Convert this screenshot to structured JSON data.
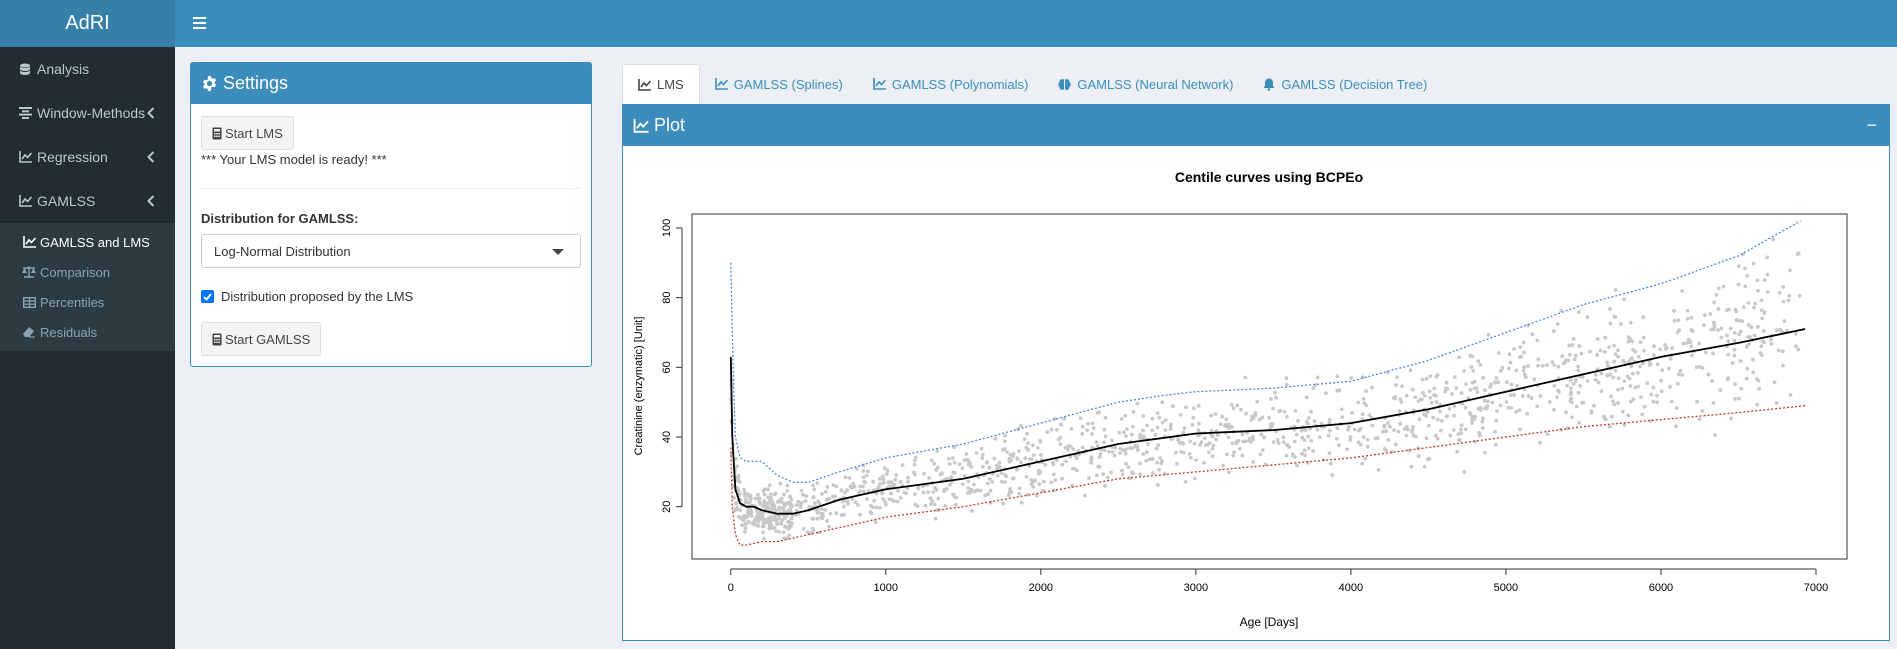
{
  "app": {
    "title": "AdRI"
  },
  "sidebar": {
    "items": [
      {
        "label": "Analysis",
        "icon": "database-icon"
      },
      {
        "label": "Window-Methods",
        "icon": "align-center-icon"
      },
      {
        "label": "Regression",
        "icon": "line-chart-icon"
      },
      {
        "label": "GAMLSS",
        "icon": "line-chart-icon"
      }
    ],
    "subitems": [
      {
        "label": "GAMLSS and LMS",
        "icon": "line-chart-icon"
      },
      {
        "label": "Comparison",
        "icon": "balance-scale-icon"
      },
      {
        "label": "Percentiles",
        "icon": "table-icon"
      },
      {
        "label": "Residuals",
        "icon": "eraser-icon"
      }
    ]
  },
  "settings": {
    "title": "Settings",
    "start_lms_label": "Start LMS",
    "status": "*** Your LMS model is ready! ***",
    "distribution_label": "Distribution for GAMLSS:",
    "distribution_value": "Log-Normal Distribution",
    "checkbox_label": "Distribution proposed by the LMS",
    "checkbox_checked": true,
    "start_gamlss_label": "Start GAMLSS"
  },
  "tabs": [
    {
      "label": "LMS",
      "icon": "line-chart-icon"
    },
    {
      "label": "GAMLSS (Splines)",
      "icon": "line-chart-icon"
    },
    {
      "label": "GAMLSS (Polynomials)",
      "icon": "line-chart-icon"
    },
    {
      "label": "GAMLSS (Neural Network)",
      "icon": "brain-icon"
    },
    {
      "label": "GAMLSS (Decision Tree)",
      "icon": "bell-icon"
    }
  ],
  "plot": {
    "title": "Plot",
    "collapse_label": "−"
  },
  "chart_data": {
    "type": "scatter",
    "title": "Centile curves using BCPEo",
    "xlabel": "Age [Days]",
    "ylabel": "Creatinine (enzymatic) [Unit]",
    "xlim": [
      -250,
      7200
    ],
    "ylim": [
      5,
      104
    ],
    "xticks": [
      0,
      1000,
      2000,
      3000,
      4000,
      5000,
      6000,
      7000
    ],
    "yticks": [
      20,
      40,
      60,
      80,
      100
    ],
    "grid": false,
    "legend": "none",
    "scatter_color": "#c8c8c8",
    "scatter_trend": {
      "x": [
        0,
        20,
        50,
        100,
        200,
        300,
        400,
        600,
        800,
        1000,
        1500,
        2000,
        2500,
        3000,
        3500,
        4000,
        4500,
        5000,
        5500,
        6000,
        6500,
        6900
      ],
      "median": [
        60,
        30,
        21,
        20,
        19,
        18,
        18,
        20,
        23,
        25,
        28,
        33,
        38,
        41,
        42,
        44,
        48,
        53,
        58,
        63,
        68,
        72
      ],
      "spread": [
        15,
        7,
        5,
        4,
        4,
        4,
        4,
        4,
        5,
        5,
        6,
        6,
        7,
        7,
        7,
        8,
        9,
        10,
        11,
        12,
        13,
        14
      ]
    },
    "series": [
      {
        "color": "#4a86e8",
        "style": "dotted",
        "x": [
          0,
          15,
          30,
          60,
          100,
          200,
          300,
          400,
          500,
          700,
          1000,
          1500,
          2000,
          2500,
          2800,
          3000,
          3500,
          4000,
          4500,
          5000,
          5500,
          6000,
          6500,
          6900
        ],
        "y": [
          90,
          60,
          40,
          34,
          33,
          33,
          29,
          27,
          27,
          30,
          34,
          38,
          44,
          50,
          52,
          53,
          54,
          56,
          62,
          70,
          78,
          84,
          92,
          102
        ]
      },
      {
        "color": "#000000",
        "style": "solid",
        "x": [
          0,
          10,
          30,
          60,
          100,
          150,
          200,
          300,
          400,
          500,
          700,
          1000,
          1500,
          2000,
          2500,
          3000,
          3500,
          4000,
          4500,
          5000,
          5500,
          6000,
          6500,
          6930
        ],
        "y": [
          63,
          40,
          25,
          21,
          20,
          20,
          19,
          18,
          18,
          19,
          22,
          25,
          28,
          33,
          38,
          41,
          42,
          44,
          48,
          53,
          58,
          63,
          67,
          71
        ]
      },
      {
        "color": "#c0392b",
        "style": "dotted",
        "x": [
          0,
          10,
          30,
          60,
          100,
          200,
          300,
          400,
          600,
          800,
          1000,
          1500,
          2000,
          2500,
          3000,
          3500,
          4000,
          4500,
          5000,
          5500,
          6000,
          6500,
          6930
        ],
        "y": [
          37,
          20,
          12,
          9,
          9,
          10,
          10,
          11,
          13,
          15,
          17,
          20,
          24,
          28,
          30,
          32,
          34,
          37,
          40,
          43,
          45,
          47,
          49
        ]
      }
    ]
  }
}
